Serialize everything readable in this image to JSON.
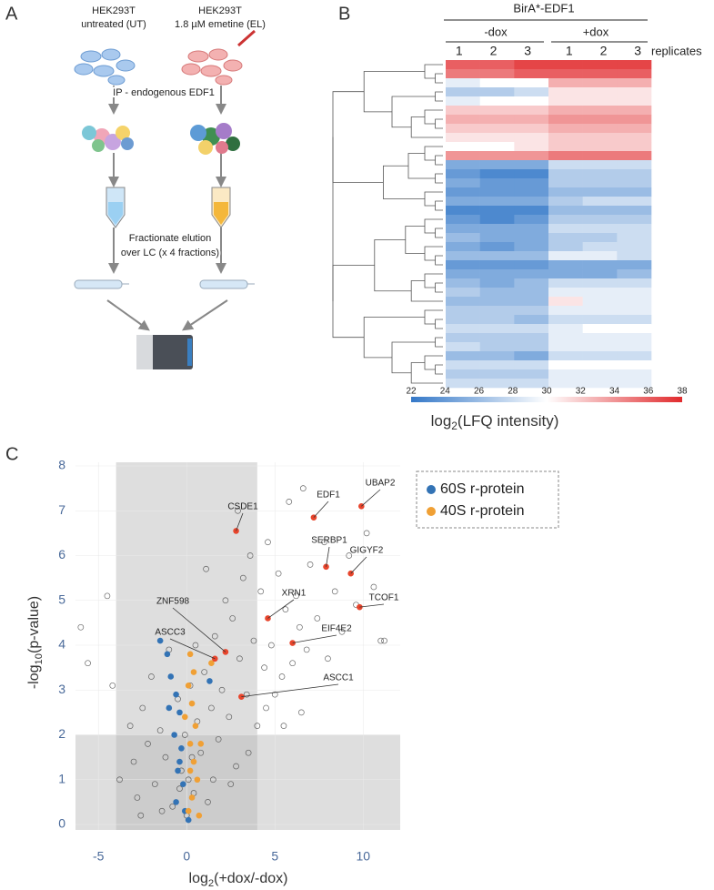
{
  "panel_labels": [
    "A",
    "B",
    "C"
  ],
  "panel_a": {
    "left_title": [
      "HEK293T",
      "untreated (UT)"
    ],
    "right_title": [
      "HEK293T",
      "1.8 µM emetine (EL)"
    ],
    "step_ip": "IP - endogenous EDF1",
    "step_fractionate": [
      "Fractionate elution",
      "over LC (x 4 fractions)"
    ]
  },
  "chart_data": [
    {
      "type": "heatmap",
      "title": "BirA*-EDF1",
      "groups": [
        "-dox",
        "+dox"
      ],
      "columns": [
        "1",
        "2",
        "3",
        "1",
        "2",
        "3"
      ],
      "column_axis_label": "replicates",
      "values": [
        [
          36,
          36,
          37,
          37,
          37,
          37
        ],
        [
          35,
          35,
          36,
          36,
          36,
          36
        ],
        [
          29,
          30,
          30,
          33,
          33,
          33
        ],
        [
          27,
          27,
          28,
          31,
          31,
          31
        ],
        [
          29,
          30,
          30,
          31,
          31,
          31
        ],
        [
          32,
          32,
          32,
          33,
          33,
          33
        ],
        [
          33,
          33,
          33,
          34,
          34,
          34
        ],
        [
          32,
          32,
          32,
          33,
          33,
          33
        ],
        [
          31,
          31,
          31,
          32,
          32,
          32
        ],
        [
          30,
          30,
          31,
          32,
          32,
          32
        ],
        [
          34,
          34,
          34,
          35,
          35,
          35
        ],
        [
          25,
          25,
          25,
          28,
          28,
          28
        ],
        [
          24,
          23,
          23,
          27,
          27,
          27
        ],
        [
          25,
          24,
          24,
          27,
          27,
          27
        ],
        [
          24,
          24,
          24,
          26,
          26,
          26
        ],
        [
          25,
          25,
          25,
          27,
          28,
          28
        ],
        [
          23,
          23,
          23,
          26,
          26,
          26
        ],
        [
          24,
          23,
          24,
          27,
          27,
          27
        ],
        [
          25,
          25,
          25,
          28,
          28,
          28
        ],
        [
          26,
          25,
          25,
          27,
          27,
          28
        ],
        [
          25,
          24,
          25,
          27,
          28,
          28
        ],
        [
          26,
          26,
          26,
          29,
          29,
          28
        ],
        [
          24,
          24,
          24,
          25,
          25,
          25
        ],
        [
          25,
          25,
          25,
          25,
          25,
          26
        ],
        [
          26,
          25,
          26,
          28,
          28,
          28
        ],
        [
          27,
          26,
          26,
          29,
          29,
          29
        ],
        [
          26,
          26,
          26,
          31,
          29,
          29
        ],
        [
          27,
          27,
          27,
          29,
          29,
          29
        ],
        [
          27,
          27,
          26,
          28,
          28,
          28
        ],
        [
          28,
          28,
          28,
          29,
          30,
          30
        ],
        [
          27,
          27,
          27,
          29,
          29,
          29
        ],
        [
          28,
          27,
          27,
          29,
          29,
          29
        ],
        [
          26,
          26,
          25,
          28,
          28,
          28
        ],
        [
          28,
          28,
          28,
          30,
          30,
          30
        ],
        [
          27,
          27,
          27,
          29,
          29,
          29
        ],
        [
          28,
          28,
          28,
          29,
          29,
          29
        ]
      ],
      "colorbar": {
        "lim": [
          22,
          38
        ],
        "ticks": [
          22,
          24,
          26,
          28,
          30,
          32,
          34,
          36,
          38
        ],
        "label": [
          "log",
          "2",
          "(LFQ intensity)"
        ]
      }
    },
    {
      "type": "scatter",
      "x_label": [
        "log",
        "2",
        "(+dox/-dox)"
      ],
      "y_label": [
        "-log",
        "10",
        "(p-value)"
      ],
      "xlim": [
        -6.3,
        12.1
      ],
      "ylim": [
        0,
        8
      ],
      "xticks": [
        -5,
        0,
        5,
        10
      ],
      "yticks": [
        0,
        1,
        2,
        3,
        4,
        5,
        6,
        7,
        8
      ],
      "grid": true,
      "thresholds": {
        "x": [
          -4,
          4
        ],
        "y": 2
      },
      "series": [
        {
          "color": "#444444",
          "marker": "open",
          "x": [
            -6,
            -5.6,
            -4.5,
            -4.2,
            -3.8,
            -3.2,
            -3,
            -2.8,
            -2.5,
            -2.2,
            -2,
            -1.8,
            -1.5,
            -1.2,
            -1,
            -0.8,
            -0.5,
            -0.3,
            0,
            0.2,
            0.4,
            0.6,
            0.8,
            1,
            1.2,
            1.4,
            1.6,
            1.8,
            2,
            2.2,
            2.4,
            2.6,
            2.8,
            3,
            3.2,
            3.4,
            3.6,
            3.8,
            4,
            4.2,
            4.4,
            4.6,
            4.8,
            5,
            5.2,
            5.4,
            5.6,
            5.8,
            6,
            6.2,
            6.4,
            6.6,
            6.8,
            7,
            7.4,
            7.8,
            8,
            8.4,
            8.8,
            9.2,
            9.6,
            10.2,
            10.6,
            11,
            11.2,
            0.1,
            -0.1,
            0.3,
            -0.4,
            0.5,
            1.5,
            2.5,
            3.5,
            -1.4,
            -2.6,
            4.5,
            5.5,
            6.5,
            1.1,
            2.9
          ],
          "values": [
            4.4,
            3.6,
            5.1,
            3.1,
            1.0,
            2.2,
            1.4,
            0.6,
            2.6,
            1.8,
            3.3,
            0.9,
            2.1,
            1.5,
            3.9,
            0.4,
            2.8,
            1.2,
            0.2,
            3.1,
            0.7,
            2.3,
            1.6,
            3.4,
            0.5,
            2.6,
            4.2,
            1.9,
            3.0,
            5.0,
            2.4,
            4.6,
            1.3,
            3.7,
            5.5,
            2.9,
            6.0,
            4.1,
            2.2,
            5.2,
            3.5,
            6.3,
            4.0,
            2.9,
            5.6,
            3.3,
            4.8,
            7.2,
            3.6,
            5.1,
            4.4,
            7.5,
            3.9,
            5.8,
            4.6,
            6.3,
            3.7,
            5.2,
            4.3,
            6.0,
            4.9,
            6.5,
            5.3,
            4.1,
            4.1,
            1.0,
            2.0,
            1.5,
            0.8,
            4.0,
            1.0,
            0.9,
            1.6,
            0.3,
            0.2,
            2.6,
            2.2,
            2.5,
            5.7,
            7.0
          ]
        },
        {
          "name": "60S r-protein",
          "color": "#3373b5",
          "x": [
            -1.5,
            -1.1,
            -0.9,
            -0.6,
            -0.4,
            -0.7,
            -0.3,
            -0.5,
            -0.2,
            -0.6,
            -0.1,
            0.1,
            1.3,
            -1,
            -0.4
          ],
          "values": [
            4.1,
            3.8,
            3.3,
            2.9,
            2.5,
            2.0,
            1.7,
            1.2,
            0.9,
            0.5,
            0.3,
            0.1,
            3.2,
            2.6,
            1.4
          ]
        },
        {
          "name": "40S r-protein",
          "color": "#f0a035",
          "x": [
            0.2,
            0.1,
            0.3,
            0.5,
            0.2,
            0.4,
            0.6,
            0.3,
            0.1,
            0.7,
            -0.1,
            0.4,
            1.4,
            0.8,
            0.2
          ],
          "values": [
            3.8,
            3.1,
            2.7,
            2.2,
            1.8,
            1.4,
            1.0,
            0.6,
            0.3,
            0.2,
            2.4,
            3.4,
            3.6,
            1.8,
            1.2
          ]
        },
        {
          "color": "#e8452c",
          "labels": [
            "CSDE1",
            "EDF1",
            "UBAP2",
            "SERBP1",
            "GIGYF2",
            "TCOF1",
            "XRN1",
            "EIF4E2",
            "ZNF598",
            "ASCC3",
            "ASCC1"
          ],
          "x": [
            2.8,
            7.2,
            9.9,
            7.9,
            9.3,
            9.8,
            4.6,
            6,
            2.2,
            1.6,
            3.1
          ],
          "values": [
            6.55,
            6.85,
            7.1,
            5.75,
            5.6,
            4.85,
            4.6,
            4.05,
            3.85,
            3.7,
            2.85
          ]
        }
      ],
      "legend": {
        "series": [
          1,
          2
        ],
        "corner": "top-right",
        "border": "dashed"
      }
    }
  ]
}
